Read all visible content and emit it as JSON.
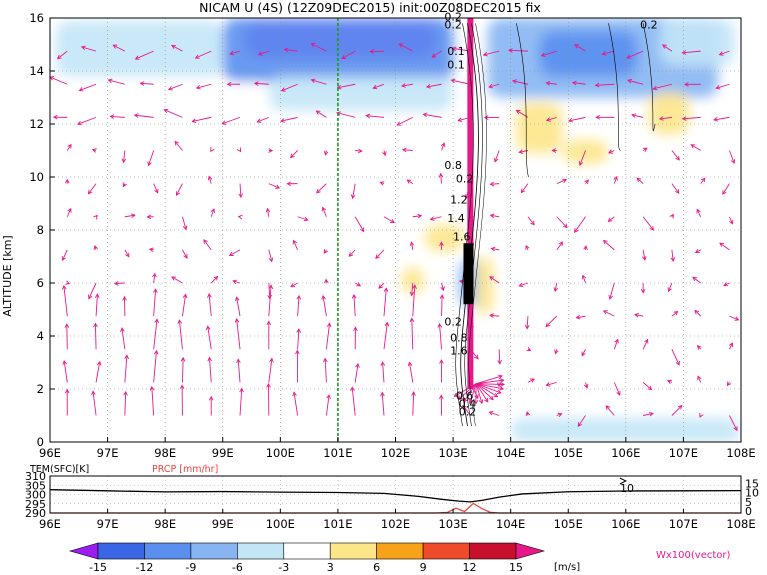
{
  "chart_data": [
    {
      "type": "heatmap",
      "title": "NICAM U (4S) (12Z09DEC2015) init:00Z08DEC2015 fix",
      "ylabel": "ALTITUDE [km]",
      "xlim": [
        96,
        108
      ],
      "ylim": [
        0,
        16
      ],
      "x_ticks": [
        "96E",
        "97E",
        "98E",
        "99E",
        "100E",
        "101E",
        "102E",
        "103E",
        "104E",
        "105E",
        "106E",
        "107E",
        "108E"
      ],
      "y_ticks": [
        "0",
        "2",
        "4",
        "6",
        "8",
        "10",
        "12",
        "14",
        "16"
      ],
      "grid": true,
      "colorbar": {
        "levels": [
          -15,
          -12,
          -9,
          -6,
          -3,
          3,
          6,
          9,
          12,
          15
        ],
        "level_labels": [
          "-15",
          "-12",
          "-9",
          "-6",
          "-3",
          "3",
          "6",
          "9",
          "12",
          "15"
        ],
        "colors": [
          "#9b1ef0",
          "#3a66e6",
          "#5a8ff0",
          "#86b5f2",
          "#c3e6f7",
          "#ffffff",
          "#fde68a",
          "#f7a21b",
          "#ef4a2a",
          "#c8102e",
          "#e7198a"
        ],
        "unit": "[m/s]"
      },
      "vector_label": "Wx100(vector)",
      "contour_labels": [
        "0.2",
        "0.1",
        "0.1",
        "0.2",
        "0.8",
        "0.2",
        "1.2",
        "1.4",
        "1.6",
        "0.2",
        "0.8",
        "1.6",
        "0.6",
        "0.4",
        "0.2",
        "0.2"
      ],
      "marker_lon": 101.0,
      "precip_band_lon": 103.3,
      "u_patches": [
        {
          "x": [
            99.4,
            102.7
          ],
          "y": [
            14.5,
            15.9
          ],
          "value": -16
        },
        {
          "x": [
            99.0,
            103.0
          ],
          "y": [
            13.6,
            16.0
          ],
          "value": -10
        },
        {
          "x": [
            96.1,
            99.0
          ],
          "y": [
            13.8,
            15.9
          ],
          "value": -6
        },
        {
          "x": [
            96.0,
            99.8
          ],
          "y": [
            10.0,
            13.5
          ],
          "value": -3
        },
        {
          "x": [
            103.6,
            107.6
          ],
          "y": [
            13.0,
            16.0
          ],
          "value": -7
        },
        {
          "x": [
            104.5,
            106.2
          ],
          "y": [
            13.8,
            15.5
          ],
          "value": -11
        },
        {
          "x": [
            106.6,
            107.9
          ],
          "y": [
            14.2,
            16.0
          ],
          "value": -5
        },
        {
          "x": [
            99.8,
            103.0
          ],
          "y": [
            12.5,
            13.8
          ],
          "value": -4
        },
        {
          "x": [
            96.0,
            97.6
          ],
          "y": [
            2.3,
            4.6
          ],
          "value": -3
        },
        {
          "x": [
            97.5,
            101.4
          ],
          "y": [
            0.2,
            2.2
          ],
          "value": -3
        },
        {
          "x": [
            104.0,
            108.0
          ],
          "y": [
            0.0,
            0.9
          ],
          "value": -6
        },
        {
          "x": [
            103.1,
            103.5
          ],
          "y": [
            5.1,
            6.9
          ],
          "value": -9
        },
        {
          "x": [
            104.1,
            104.9
          ],
          "y": [
            10.9,
            12.8
          ],
          "value": 4
        },
        {
          "x": [
            104.9,
            105.7
          ],
          "y": [
            10.5,
            11.4
          ],
          "value": 4
        },
        {
          "x": [
            106.4,
            107.1
          ],
          "y": [
            11.6,
            13.2
          ],
          "value": 4
        },
        {
          "x": [
            102.5,
            103.2
          ],
          "y": [
            7.2,
            8.2
          ],
          "value": 5
        },
        {
          "x": [
            102.1,
            102.5
          ],
          "y": [
            5.6,
            6.6
          ],
          "value": 4
        },
        {
          "x": [
            103.4,
            103.7
          ],
          "y": [
            4.8,
            7.0
          ],
          "value": 5
        }
      ]
    },
    {
      "type": "line",
      "y_label_left": "TEM(SFC)[K]",
      "y_label_right": "PRCP [mm/hr]",
      "xlim": [
        96,
        108
      ],
      "ylim_left": [
        290,
        310
      ],
      "ylim_right": [
        0,
        20
      ],
      "left_ticks": [
        "310",
        "305",
        "300",
        "295",
        "290"
      ],
      "right_ticks": [
        "15",
        "10",
        "5",
        "0"
      ],
      "right_annotation": "10",
      "x_ticks": [
        "96E",
        "97E",
        "98E",
        "99E",
        "100E",
        "101E",
        "102E",
        "103E",
        "104E",
        "105E",
        "106E",
        "107E",
        "108E"
      ],
      "series": [
        {
          "color": "#000000",
          "x": [
            96,
            97,
            98,
            99,
            100,
            101,
            101.8,
            102.4,
            102.8,
            103.1,
            103.3,
            103.5,
            103.8,
            104.2,
            105,
            106,
            107,
            108
          ],
          "values": [
            302.6,
            302.0,
            301.4,
            301.6,
            301.3,
            301.1,
            300.6,
            299.0,
            297.4,
            296.4,
            296.0,
            296.8,
            298.6,
            300.3,
            301.5,
            301.9,
            302.0,
            302.1
          ]
        },
        {
          "color": "#e8453c",
          "x": [
            96,
            102.7,
            102.9,
            103.05,
            103.2,
            103.35,
            103.5,
            103.65,
            103.8,
            108
          ],
          "values": [
            0,
            0,
            0.3,
            2.6,
            0.8,
            5.2,
            2.4,
            0.3,
            0,
            0
          ]
        }
      ]
    }
  ]
}
